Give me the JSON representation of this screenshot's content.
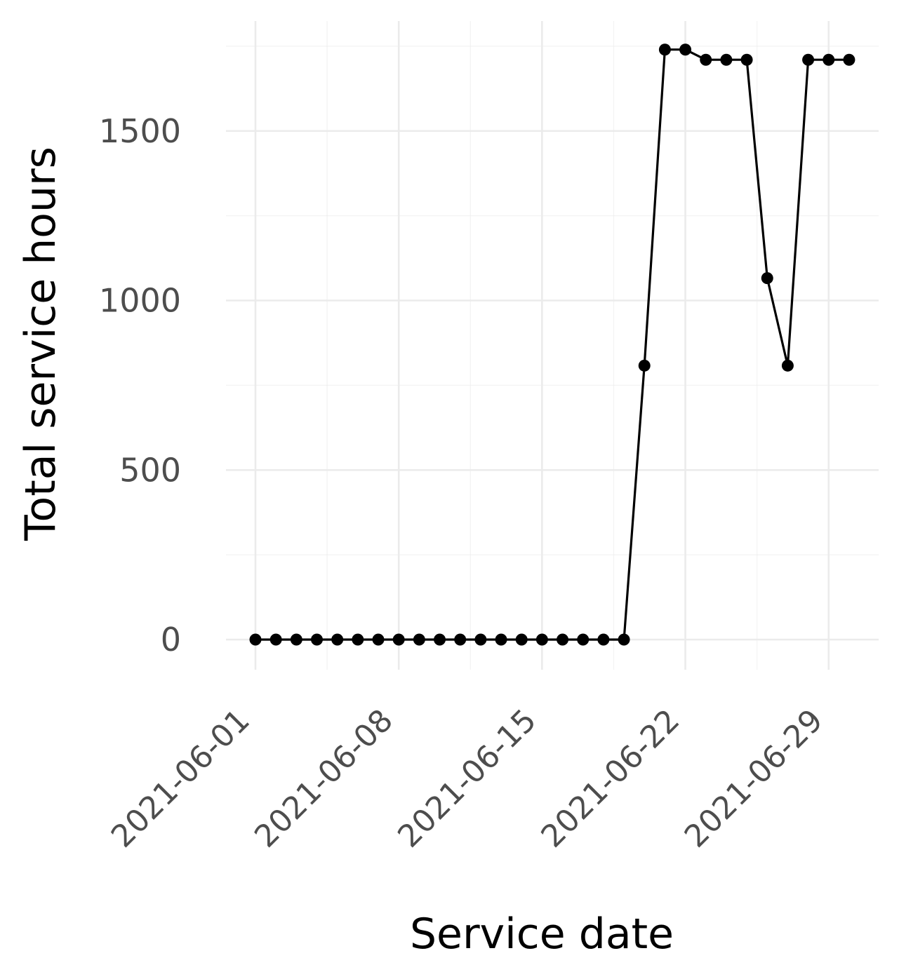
{
  "chart_data": {
    "type": "line",
    "xlabel": "Service date",
    "ylabel": "Total service hours",
    "x_ticks": [
      "2021-06-01",
      "2021-06-08",
      "2021-06-15",
      "2021-06-22",
      "2021-06-29"
    ],
    "y_ticks": [
      "0",
      "500",
      "1000",
      "1500"
    ],
    "xlim": [
      "2021-06-01",
      "2021-06-30"
    ],
    "ylim": [
      0,
      1740
    ],
    "grid": true,
    "legend": "none",
    "colors": {
      "line": "#000000",
      "grid": "#ebebeb",
      "tick_text": "#4d4d4d"
    },
    "series": [
      {
        "markers": true,
        "points": [
          {
            "x": "2021-06-01",
            "y": 0
          },
          {
            "x": "2021-06-02",
            "y": 0
          },
          {
            "x": "2021-06-03",
            "y": 0
          },
          {
            "x": "2021-06-04",
            "y": 0
          },
          {
            "x": "2021-06-05",
            "y": 0
          },
          {
            "x": "2021-06-06",
            "y": 0
          },
          {
            "x": "2021-06-07",
            "y": 0
          },
          {
            "x": "2021-06-08",
            "y": 0
          },
          {
            "x": "2021-06-09",
            "y": 0
          },
          {
            "x": "2021-06-10",
            "y": 0
          },
          {
            "x": "2021-06-11",
            "y": 0
          },
          {
            "x": "2021-06-12",
            "y": 0
          },
          {
            "x": "2021-06-13",
            "y": 0
          },
          {
            "x": "2021-06-14",
            "y": 0
          },
          {
            "x": "2021-06-15",
            "y": 0
          },
          {
            "x": "2021-06-16",
            "y": 0
          },
          {
            "x": "2021-06-17",
            "y": 0
          },
          {
            "x": "2021-06-18",
            "y": 0
          },
          {
            "x": "2021-06-19",
            "y": 0
          },
          {
            "x": "2021-06-20",
            "y": 808
          },
          {
            "x": "2021-06-21",
            "y": 1740
          },
          {
            "x": "2021-06-22",
            "y": 1740
          },
          {
            "x": "2021-06-23",
            "y": 1710
          },
          {
            "x": "2021-06-24",
            "y": 1710
          },
          {
            "x": "2021-06-25",
            "y": 1710
          },
          {
            "x": "2021-06-26",
            "y": 1066
          },
          {
            "x": "2021-06-27",
            "y": 808
          },
          {
            "x": "2021-06-28",
            "y": 1710
          },
          {
            "x": "2021-06-29",
            "y": 1710
          },
          {
            "x": "2021-06-30",
            "y": 1710
          }
        ]
      }
    ]
  }
}
